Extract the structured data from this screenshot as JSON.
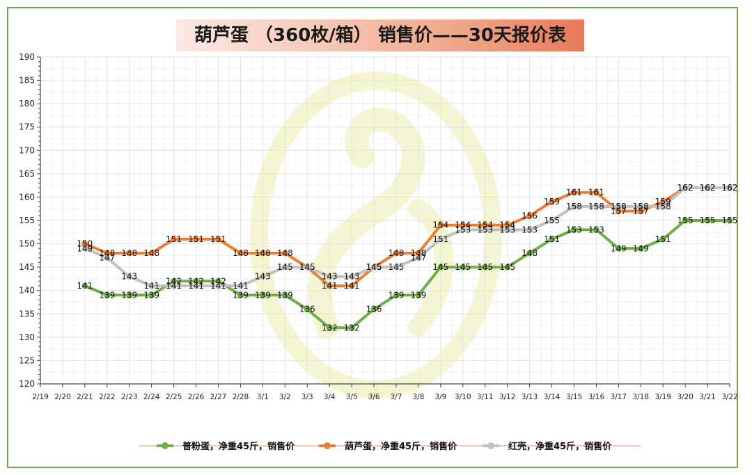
{
  "chart_data": {
    "type": "line",
    "title": "葫芦蛋 （360枚/箱） 销售价——30天报价表",
    "categories": [
      "2/19",
      "2/20",
      "2/21",
      "2/22",
      "2/23",
      "2/24",
      "2/25",
      "2/26",
      "2/27",
      "2/28",
      "3/1",
      "3/2",
      "3/3",
      "3/4",
      "3/5",
      "3/6",
      "3/7",
      "3/8",
      "3/9",
      "3/10",
      "3/11",
      "3/12",
      "3/13",
      "3/14",
      "3/15",
      "3/16",
      "3/17",
      "3/18",
      "3/19",
      "3/20",
      "3/21",
      "3/22"
    ],
    "ylim": [
      120,
      190
    ],
    "yticks": [
      "120",
      "125",
      "130",
      "135",
      "140",
      "145",
      "150",
      "155",
      "160",
      "165",
      "170",
      "175",
      "180",
      "185",
      "190"
    ],
    "grid": true,
    "legend_position": "bottom",
    "series": [
      {
        "name": "普粉蛋，净重45斤，销售价",
        "color": "#70ad47",
        "values": [
          null,
          null,
          141,
          139,
          139,
          139,
          142,
          142,
          142,
          139,
          139,
          139,
          136,
          132,
          132,
          136,
          139,
          139,
          145,
          145,
          145,
          145,
          148,
          151,
          153,
          153,
          149,
          149,
          151,
          155,
          155,
          155
        ]
      },
      {
        "name": "葫芦蛋，净重45斤，销售价",
        "color": "#ed7d31",
        "values": [
          null,
          null,
          150,
          148,
          148,
          148,
          151,
          151,
          151,
          148,
          148,
          148,
          145,
          141,
          141,
          145,
          148,
          148,
          154,
          154,
          154,
          154,
          156,
          159,
          161,
          161,
          157,
          157,
          159,
          162,
          162,
          162
        ]
      },
      {
        "name": "红壳，净重45斤，销售价",
        "color": "#c0c0c0",
        "values": [
          null,
          null,
          149,
          147,
          143,
          141,
          141,
          141,
          141,
          141,
          143,
          145,
          145,
          143,
          143,
          145,
          145,
          147,
          151,
          153,
          153,
          153,
          153,
          155,
          158,
          158,
          158,
          158,
          158,
          162,
          162,
          162
        ]
      }
    ]
  }
}
